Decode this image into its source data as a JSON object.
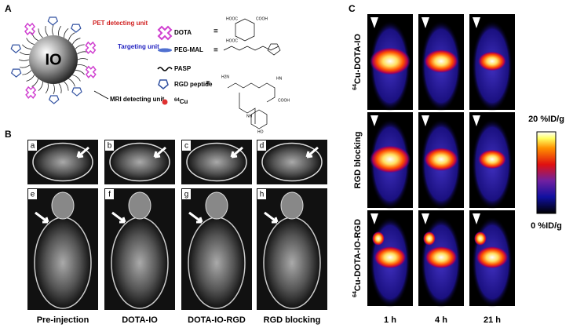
{
  "panel_a": {
    "label": "A",
    "core": "IO",
    "annotations": [
      "PET detecting unit",
      "Targeting unit",
      "MRI detecting unit"
    ],
    "legend": [
      {
        "label": "DOTA"
      },
      {
        "label": "PEG-MAL"
      },
      {
        "label": "PASP"
      },
      {
        "label": "RGD peptide"
      },
      {
        "sup": "64",
        "label": "Cu"
      }
    ],
    "chem_labels": [
      "HOOC",
      "COOH",
      "HOOC",
      "HN",
      "H2N",
      "NH",
      "COOH",
      "HO"
    ]
  },
  "panel_b": {
    "label": "B",
    "image_letters": [
      "a",
      "b",
      "c",
      "d",
      "e",
      "f",
      "g",
      "h"
    ],
    "captions": [
      "Pre-injection",
      "DOTA-IO",
      "DOTA-IO-RGD",
      "RGD blocking"
    ]
  },
  "panel_c": {
    "label": "C",
    "rows": [
      {
        "sup": "64",
        "label": "Cu-DOTA-IO"
      },
      {
        "label": "RGD blocking"
      },
      {
        "sup": "64",
        "label": "Cu-DOTA-IO-RGD"
      }
    ],
    "columns": [
      "1 h",
      "4 h",
      "21 h"
    ],
    "colorbar": {
      "max_label": "20 %ID/g",
      "min_label": "0 %ID/g"
    }
  }
}
